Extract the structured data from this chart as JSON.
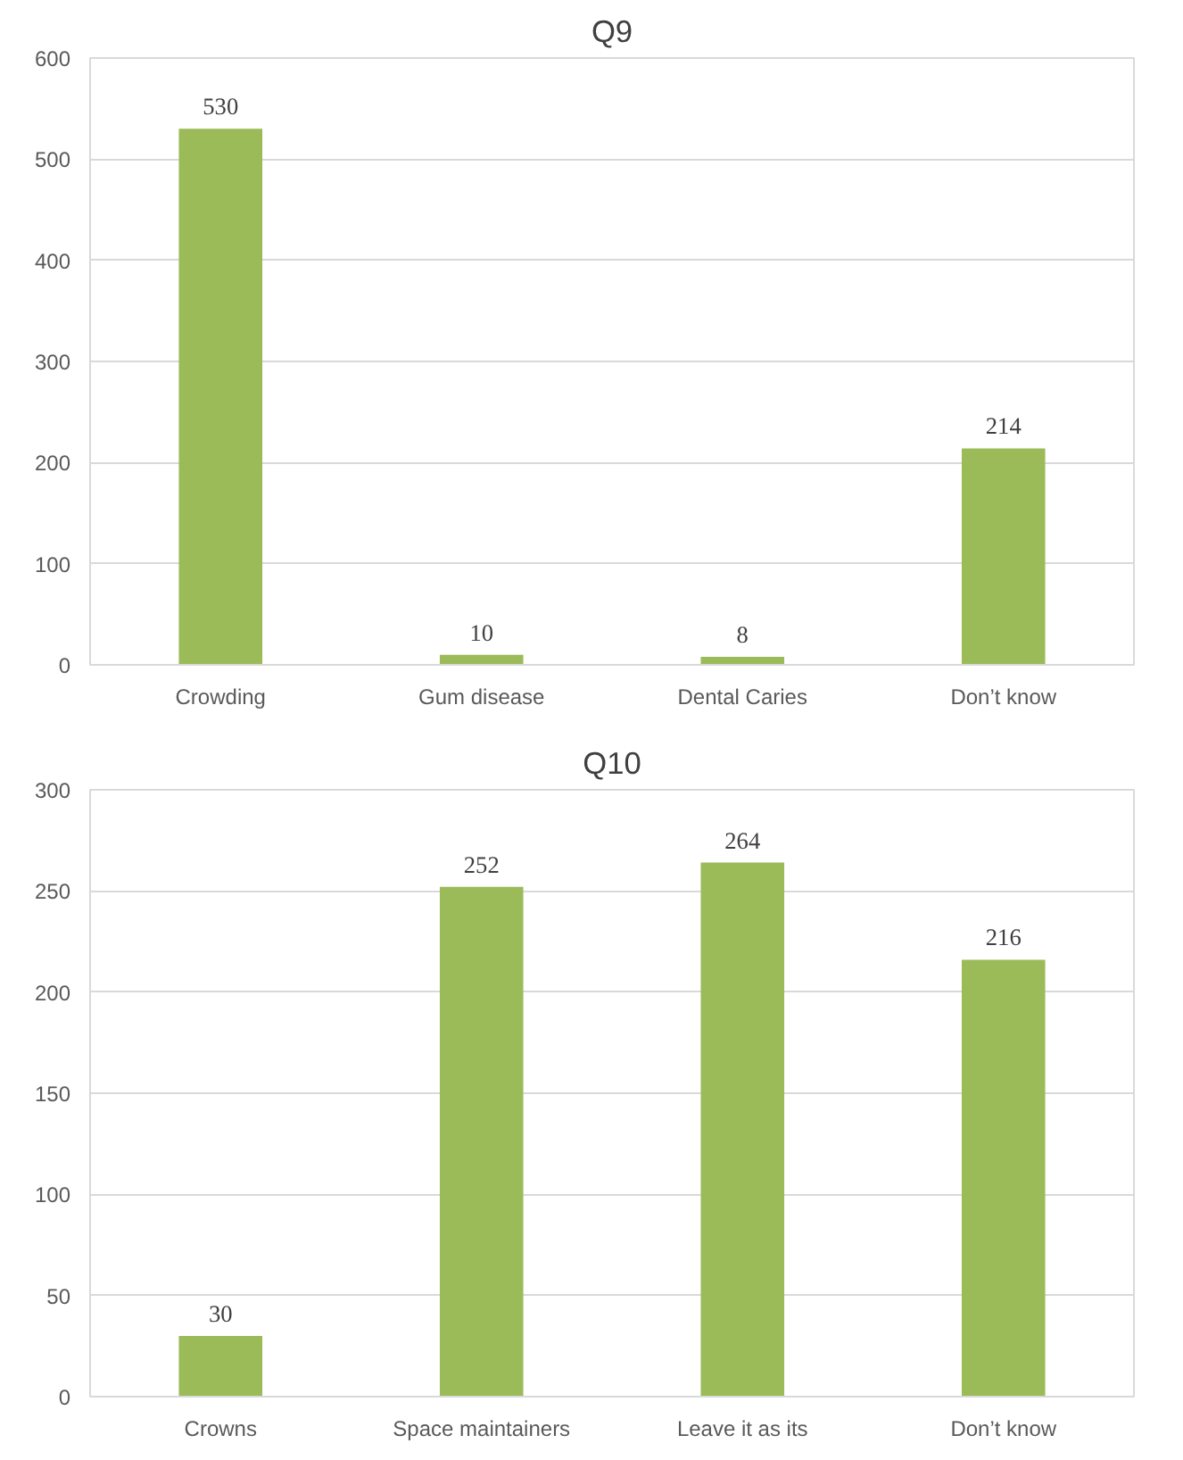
{
  "chart_data": [
    {
      "type": "bar",
      "title": "Q9",
      "categories": [
        "Crowding",
        "Gum disease",
        "Dental Caries",
        "Don’t know"
      ],
      "values": [
        530,
        10,
        8,
        214
      ],
      "color": "#9bbb59",
      "ylim": [
        0,
        600
      ],
      "yticks": [
        0,
        100,
        200,
        300,
        400,
        500,
        600
      ],
      "grid": "y",
      "data_labels": true
    },
    {
      "type": "bar",
      "title": "Q10",
      "categories": [
        "Crowns",
        "Space maintainers",
        "Leave it as its",
        "Don’t know"
      ],
      "values": [
        30,
        252,
        264,
        216
      ],
      "color": "#9bbb59",
      "ylim": [
        0,
        300
      ],
      "yticks": [
        0,
        50,
        100,
        150,
        200,
        250,
        300
      ],
      "grid": "y",
      "data_labels": true
    }
  ]
}
